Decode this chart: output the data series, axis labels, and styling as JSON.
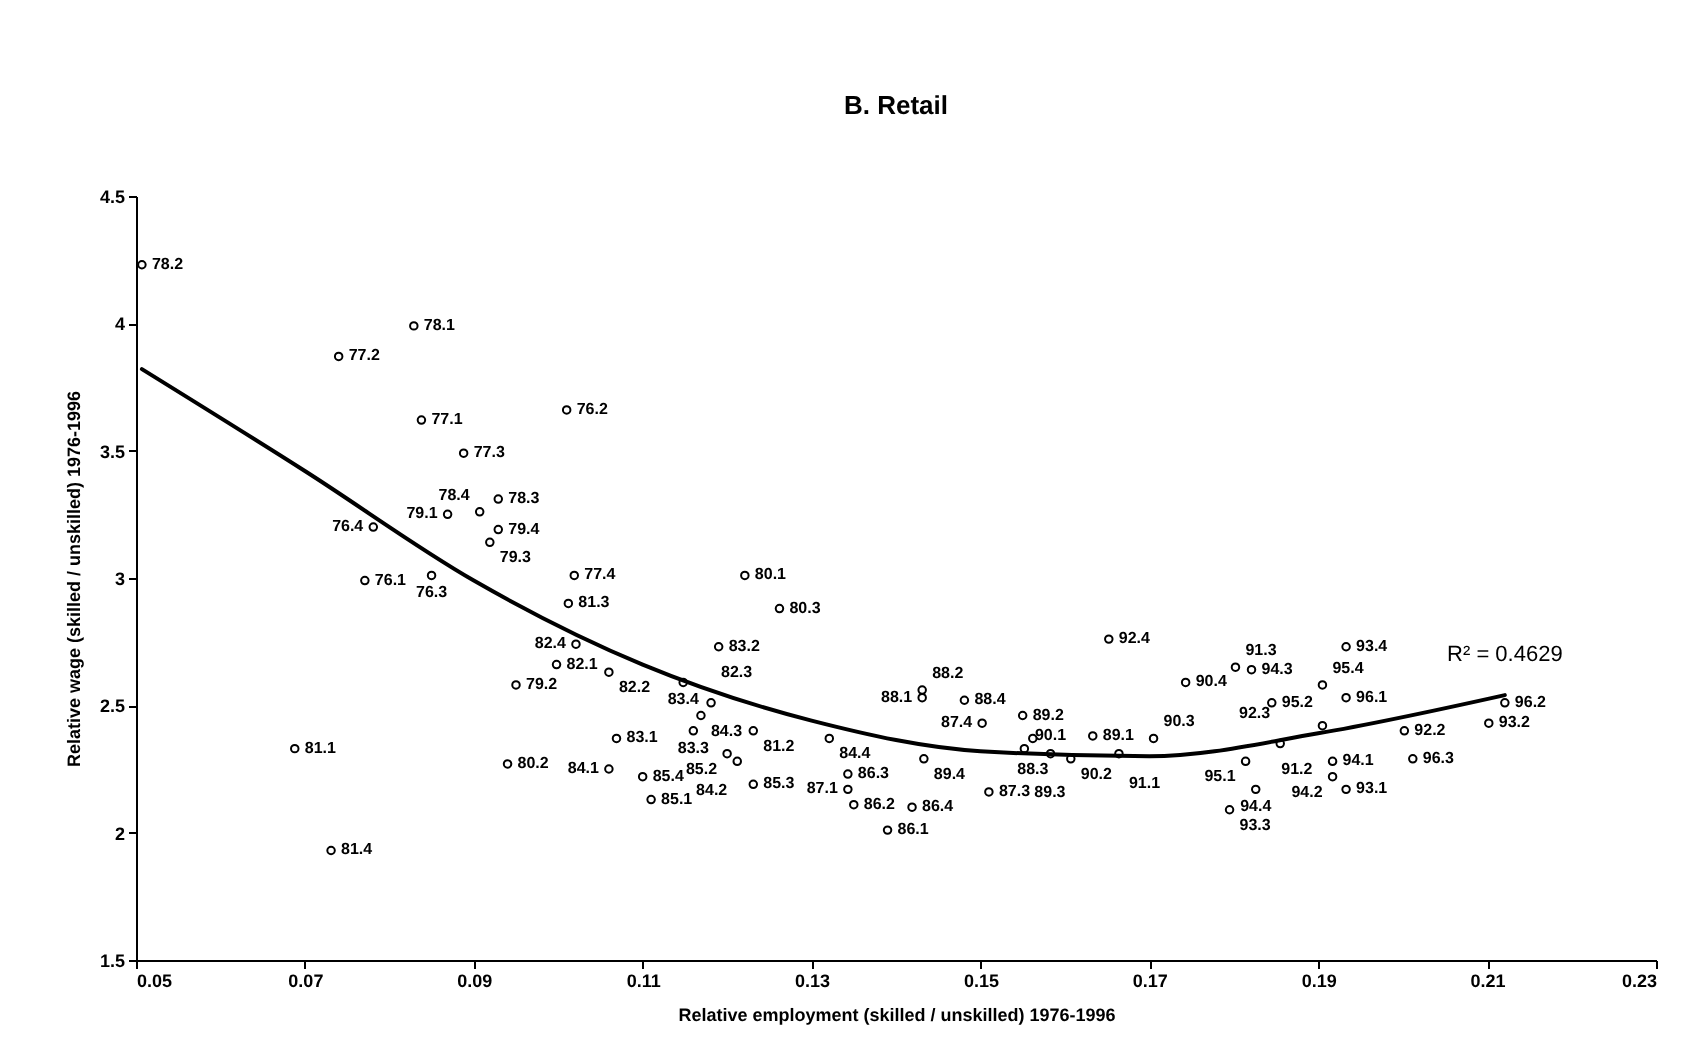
{
  "chart_data": {
    "type": "scatter",
    "title": "B. Retail",
    "xlabel": "Relative employment (skilled / unskilled) 1976-1996",
    "ylabel": "Relative wage (skilled / unskilled) 1976-1996",
    "xlim": [
      0.05,
      0.23
    ],
    "xticks": [
      0.05,
      0.07,
      0.09,
      0.11,
      0.13,
      0.15,
      0.17,
      0.19,
      0.21,
      0.23
    ],
    "ylim": [
      1.5,
      4.5
    ],
    "yticks": [
      1.5,
      2,
      2.5,
      3,
      3.5,
      4,
      4.5
    ],
    "marker": "circle",
    "annotations": [
      {
        "text": "R² = 0.4629",
        "x": 0.2121,
        "y": 2.54
      },
      {
        "text": "78.2",
        "x": 0.0507,
        "y": 4.23
      },
      {
        "text": "78.1",
        "x": 0.0829,
        "y": 3.99
      },
      {
        "text": "77.2",
        "x": 0.074,
        "y": 3.87
      },
      {
        "text": "77.1",
        "x": 0.0838,
        "y": 3.62
      },
      {
        "text": "77.3",
        "x": 0.0888,
        "y": 3.49
      },
      {
        "text": "78.3",
        "x": 0.0929,
        "y": 3.31
      },
      {
        "text": "78.4",
        "x": 0.0907,
        "y": 3.26
      },
      {
        "text": "79.1",
        "x": 0.0869,
        "y": 3.25
      },
      {
        "text": "76.4",
        "x": 0.0781,
        "y": 3.2
      },
      {
        "text": "79.4",
        "x": 0.0929,
        "y": 3.19
      },
      {
        "text": "79.3",
        "x": 0.0919,
        "y": 3.14
      },
      {
        "text": "76.1",
        "x": 0.0771,
        "y": 2.99
      },
      {
        "text": "76.3",
        "x": 0.085,
        "y": 3.01
      },
      {
        "text": "81.1",
        "x": 0.0688,
        "y": 2.33
      },
      {
        "text": "81.4",
        "x": 0.0731,
        "y": 1.93
      },
      {
        "text": "79.2",
        "x": 0.095,
        "y": 2.58
      },
      {
        "text": "80.2",
        "x": 0.094,
        "y": 2.27
      },
      {
        "text": "82.1",
        "x": 0.0998,
        "y": 2.66
      },
      {
        "text": "76.2",
        "x": 0.101,
        "y": 3.66
      },
      {
        "text": "77.4",
        "x": 0.1019,
        "y": 3.01
      },
      {
        "text": "81.3",
        "x": 0.1012,
        "y": 2.9
      },
      {
        "text": "80.1",
        "x": 0.1221,
        "y": 3.01
      },
      {
        "text": "80.3",
        "x": 0.1262,
        "y": 2.88
      },
      {
        "text": "83.2",
        "x": 0.119,
        "y": 2.73
      },
      {
        "text": "82.4",
        "x": 0.1021,
        "y": 2.74
      },
      {
        "text": "82.2",
        "x": 0.106,
        "y": 2.63
      },
      {
        "text": "83.4",
        "x": 0.1148,
        "y": 2.59
      },
      {
        "text": "82.3",
        "x": 0.1181,
        "y": 2.51
      },
      {
        "text": "84.3",
        "x": 0.1169,
        "y": 2.46
      },
      {
        "text": "83.1",
        "x": 0.1069,
        "y": 2.37
      },
      {
        "text": "83.3",
        "x": 0.116,
        "y": 2.4
      },
      {
        "text": "81.2",
        "x": 0.1231,
        "y": 2.4
      },
      {
        "text": "85.2",
        "x": 0.12,
        "y": 2.31
      },
      {
        "text": "84.2",
        "x": 0.1212,
        "y": 2.28
      },
      {
        "text": "84.1",
        "x": 0.106,
        "y": 2.25
      },
      {
        "text": "85.4",
        "x": 0.11,
        "y": 2.22
      },
      {
        "text": "85.1",
        "x": 0.111,
        "y": 2.13
      },
      {
        "text": "85.3",
        "x": 0.1231,
        "y": 2.19
      },
      {
        "text": "84.4",
        "x": 0.1321,
        "y": 2.37
      },
      {
        "text": "86.3",
        "x": 0.1343,
        "y": 2.23
      },
      {
        "text": "87.1",
        "x": 0.1343,
        "y": 2.17
      },
      {
        "text": "86.2",
        "x": 0.135,
        "y": 2.11
      },
      {
        "text": "86.4",
        "x": 0.1419,
        "y": 2.1
      },
      {
        "text": "86.1",
        "x": 0.139,
        "y": 2.01
      },
      {
        "text": "89.4",
        "x": 0.1433,
        "y": 2.29
      },
      {
        "text": "88.2",
        "x": 0.1431,
        "y": 2.56
      },
      {
        "text": "88.1",
        "x": 0.1431,
        "y": 2.53
      },
      {
        "text": "88.4",
        "x": 0.1481,
        "y": 2.52
      },
      {
        "text": "87.4",
        "x": 0.1502,
        "y": 2.43
      },
      {
        "text": "87.3",
        "x": 0.151,
        "y": 2.16
      },
      {
        "text": "89.2",
        "x": 0.155,
        "y": 2.46
      },
      {
        "text": "88.3",
        "x": 0.1562,
        "y": 2.37
      },
      {
        "text": "89.1",
        "x": 0.1633,
        "y": 2.38
      },
      {
        "text": "90.3",
        "x": 0.1705,
        "y": 2.37
      },
      {
        "text": "89.3",
        "x": 0.1552,
        "y": 2.33
      },
      {
        "text": "90.1",
        "x": 0.1583,
        "y": 2.31
      },
      {
        "text": "90.2",
        "x": 0.1607,
        "y": 2.29
      },
      {
        "text": "91.1",
        "x": 0.1664,
        "y": 2.31
      },
      {
        "text": "92.4",
        "x": 0.1652,
        "y": 2.76
      },
      {
        "text": "90.4",
        "x": 0.1743,
        "y": 2.59
      },
      {
        "text": "91.3",
        "x": 0.1802,
        "y": 2.65
      },
      {
        "text": "94.3",
        "x": 0.1821,
        "y": 2.64
      },
      {
        "text": "93.4",
        "x": 0.1933,
        "y": 2.73
      },
      {
        "text": "95.4",
        "x": 0.1905,
        "y": 2.58
      },
      {
        "text": "95.2",
        "x": 0.1845,
        "y": 2.51
      },
      {
        "text": "96.1",
        "x": 0.1933,
        "y": 2.53
      },
      {
        "text": "91.2",
        "x": 0.1905,
        "y": 2.42
      },
      {
        "text": "92.3",
        "x": 0.1855,
        "y": 2.35
      },
      {
        "text": "95.1",
        "x": 0.1814,
        "y": 2.28
      },
      {
        "text": "94.1",
        "x": 0.1917,
        "y": 2.28
      },
      {
        "text": "94.2",
        "x": 0.1917,
        "y": 2.22
      },
      {
        "text": "94.4",
        "x": 0.1826,
        "y": 2.17
      },
      {
        "text": "93.3",
        "x": 0.1795,
        "y": 2.09
      },
      {
        "text": "93.1",
        "x": 0.1933,
        "y": 2.17
      },
      {
        "text": "92.2",
        "x": 0.2002,
        "y": 2.4
      },
      {
        "text": "96.3",
        "x": 0.2012,
        "y": 2.29
      },
      {
        "text": "96.2",
        "x": 0.2121,
        "y": 2.51
      },
      {
        "text": "93.2",
        "x": 0.2102,
        "y": 2.43
      }
    ],
    "series": [
      {
        "color": "#000000",
        "x": [
          0.0507,
          0.0829,
          0.074,
          0.0838,
          0.0888,
          0.0929,
          0.0907,
          0.0869,
          0.0781,
          0.0929,
          0.0919,
          0.0771,
          0.085,
          0.0688,
          0.0731,
          0.095,
          0.094,
          0.0998,
          0.101,
          0.1019,
          0.1012,
          0.1221,
          0.1262,
          0.119,
          0.1021,
          0.106,
          0.1148,
          0.1181,
          0.1169,
          0.1069,
          0.116,
          0.1231,
          0.12,
          0.1212,
          0.106,
          0.11,
          0.111,
          0.1231,
          0.1321,
          0.1343,
          0.1343,
          0.135,
          0.1419,
          0.139,
          0.1433,
          0.1431,
          0.1431,
          0.1481,
          0.1502,
          0.151,
          0.155,
          0.1562,
          0.1633,
          0.1705,
          0.1552,
          0.1583,
          0.1607,
          0.1664,
          0.1652,
          0.1743,
          0.1802,
          0.1821,
          0.1933,
          0.1905,
          0.1845,
          0.1933,
          0.1905,
          0.1855,
          0.1814,
          0.1917,
          0.1917,
          0.1826,
          0.1795,
          0.1933,
          0.2002,
          0.2012,
          0.2121,
          0.2102
        ],
        "values": [
          4.23,
          3.99,
          3.87,
          3.62,
          3.49,
          3.31,
          3.26,
          3.25,
          3.2,
          3.19,
          3.14,
          2.99,
          3.01,
          2.33,
          1.93,
          2.58,
          2.27,
          2.66,
          3.66,
          3.01,
          2.9,
          3.01,
          2.88,
          2.73,
          2.74,
          2.63,
          2.59,
          2.51,
          2.46,
          2.37,
          2.4,
          2.4,
          2.31,
          2.28,
          2.25,
          2.22,
          2.13,
          2.19,
          2.37,
          2.23,
          2.17,
          2.11,
          2.1,
          2.01,
          2.29,
          2.56,
          2.53,
          2.52,
          2.43,
          2.16,
          2.46,
          2.37,
          2.38,
          2.37,
          2.33,
          2.31,
          2.29,
          2.31,
          2.76,
          2.59,
          2.65,
          2.64,
          2.73,
          2.58,
          2.51,
          2.53,
          2.42,
          2.35,
          2.28,
          2.28,
          2.22,
          2.17,
          2.09,
          2.17,
          2.4,
          2.29,
          2.51,
          2.43
        ]
      },
      {
        "type": "line",
        "color": "#000000",
        "marker": "none",
        "x": [
          0.0507,
          0.07,
          0.09,
          0.11,
          0.13,
          0.15,
          0.17,
          0.19,
          0.2121
        ],
        "values": [
          3.82,
          3.42,
          2.99,
          2.66,
          2.44,
          2.32,
          2.3,
          2.39,
          2.54
        ]
      }
    ]
  }
}
